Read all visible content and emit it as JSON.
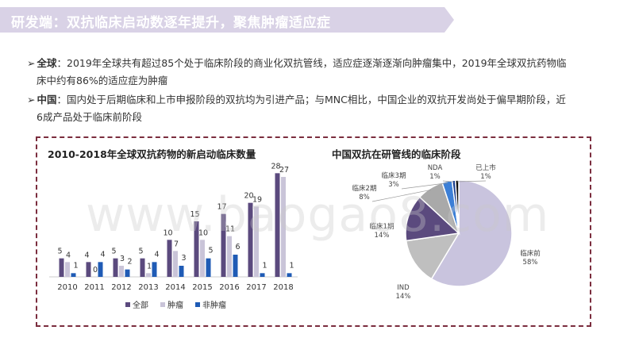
{
  "header": {
    "title": "研发端：双抗临床启动数逐年提升，聚焦肿瘤适应症"
  },
  "bullets": [
    {
      "marker": "➢",
      "lead": "全球",
      "line1": "：2019年全球共有超过85个处于临床阶段的商业化双抗管线，适应症逐渐逐渐向肿瘤集中，2019年全球双抗药物临",
      "line2": "床中约有86%的适应症为肿瘤"
    },
    {
      "marker": "➢",
      "lead": "中国",
      "line1": "：国内处于后期临床和上市申报阶段的双抗均为引进产品；与MNC相比，中国企业的双抗开发尚处于偏早期阶段，近",
      "line2": "6成产品处于临床前阶段"
    }
  ],
  "watermark": "www.baogao8.com",
  "chart_data": [
    {
      "type": "bar",
      "title": "2010-2018年全球双抗药物的新启动临床数量",
      "categories": [
        "2010",
        "2011",
        "2012",
        "2013",
        "2014",
        "2015",
        "2016",
        "2017",
        "2018"
      ],
      "series": [
        {
          "name": "全部",
          "color": "#5b4a7e",
          "values": [
            5,
            4,
            5,
            5,
            10,
            15,
            17,
            20,
            28
          ]
        },
        {
          "name": "肿瘤",
          "color": "#c9c4d8",
          "values": [
            4,
            0,
            3,
            1,
            7,
            10,
            11,
            19,
            27
          ]
        },
        {
          "name": "非肿瘤",
          "color": "#1f5bb5",
          "values": [
            1,
            4,
            2,
            4,
            3,
            5,
            6,
            1,
            1
          ]
        }
      ],
      "ylim": [
        0,
        30
      ],
      "legend_position": "bottom"
    },
    {
      "type": "pie",
      "title": "中国双抗在研管线的临床阶段",
      "slices": [
        {
          "label": "临床前",
          "value": 58,
          "display": "58%",
          "color": "#c9c4de"
        },
        {
          "label": "IND",
          "value": 14,
          "display": "14%",
          "color": "#bfbfbf"
        },
        {
          "label": "临床1期",
          "value": 14,
          "display": "14%",
          "color": "#5b4a7e"
        },
        {
          "label": "临床2期",
          "value": 8,
          "display": "8%",
          "color": "#a9a9a9"
        },
        {
          "label": "临床3期",
          "value": 3,
          "display": "3%",
          "color": "#3c7fd6"
        },
        {
          "label": "NDA",
          "value": 1,
          "display": "1%",
          "color": "#1a3f8f"
        },
        {
          "label": "已上市",
          "value": 1,
          "display": "1%",
          "color": "#111111"
        }
      ]
    }
  ]
}
